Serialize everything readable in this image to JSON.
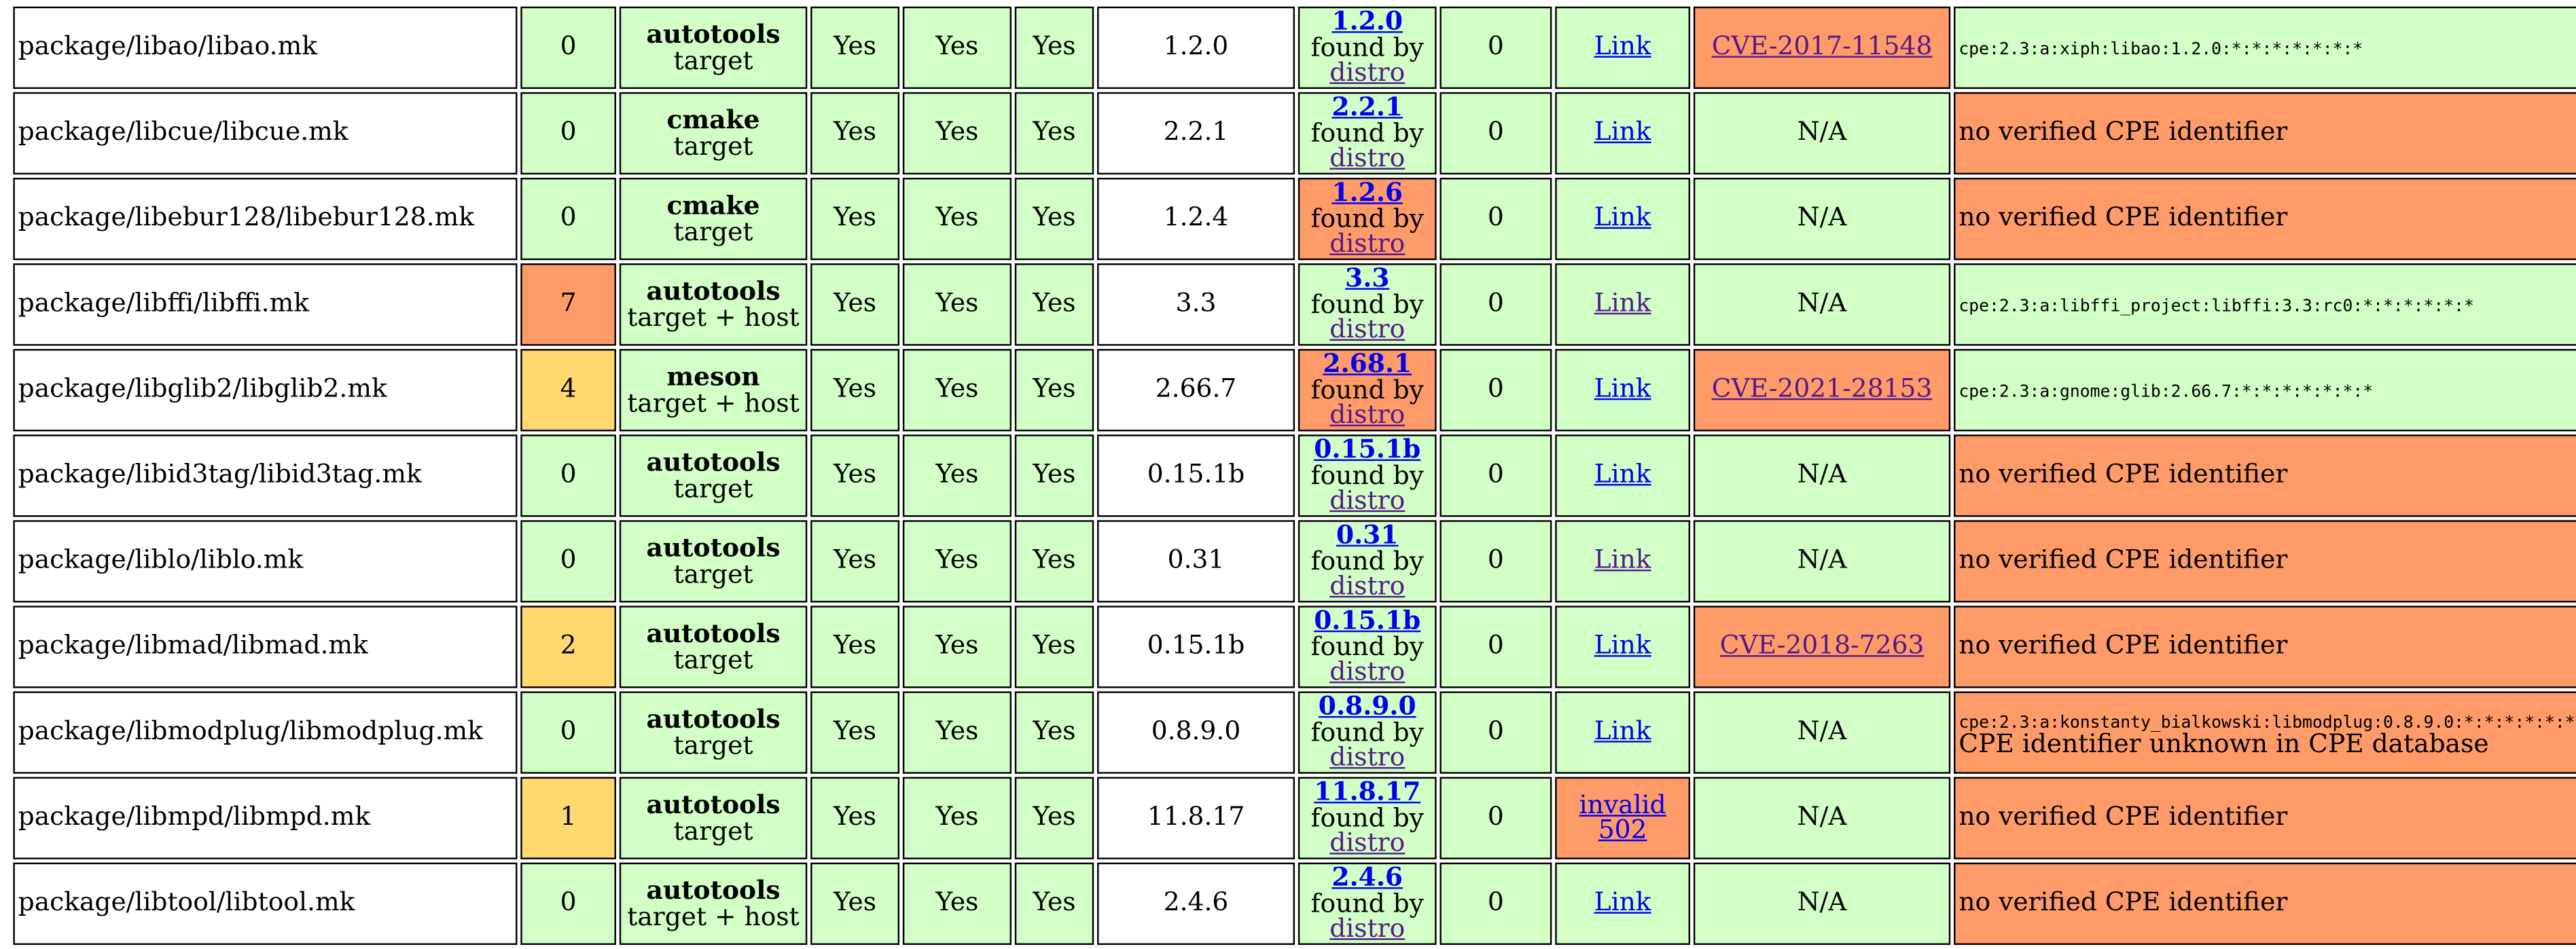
{
  "colors": {
    "ok_green": "#d1ffc5",
    "bad_orange": "#ff9a69",
    "warn_yellow": "#ffd870",
    "link_blue": "#0000ee",
    "link_visited": "#551a8b"
  },
  "found_by_label": "found by",
  "distro_label": "distro",
  "rows": [
    {
      "path": "package/libao/libao.mk",
      "patches": "0",
      "patches_status": "green",
      "infra": "autotools",
      "infra_target": "target",
      "license": "Yes",
      "license_files": "Yes",
      "hash_file": "Yes",
      "version": "1.2.0",
      "upstream_version": "1.2.0",
      "upstream_status": "green",
      "warnings": "0",
      "url": "Link",
      "url_status": "green",
      "url_visited": false,
      "cve": "CVE-2017-11548",
      "cve_status": "orange",
      "cve_is_link": true,
      "cpe_id": "cpe:2.3:a:xiph:libao:1.2.0:*:*:*:*:*:*:*",
      "cpe_note": "",
      "cpe_status": "green"
    },
    {
      "path": "package/libcue/libcue.mk",
      "patches": "0",
      "patches_status": "green",
      "infra": "cmake",
      "infra_target": "target",
      "license": "Yes",
      "license_files": "Yes",
      "hash_file": "Yes",
      "version": "2.2.1",
      "upstream_version": "2.2.1",
      "upstream_status": "green",
      "warnings": "0",
      "url": "Link",
      "url_status": "green",
      "url_visited": false,
      "cve": "N/A",
      "cve_status": "green",
      "cve_is_link": false,
      "cpe_id": "",
      "cpe_note": "no verified CPE identifier",
      "cpe_status": "orange"
    },
    {
      "path": "package/libebur128/libebur128.mk",
      "patches": "0",
      "patches_status": "green",
      "infra": "cmake",
      "infra_target": "target",
      "license": "Yes",
      "license_files": "Yes",
      "hash_file": "Yes",
      "version": "1.2.4",
      "upstream_version": "1.2.6",
      "upstream_status": "orange",
      "warnings": "0",
      "url": "Link",
      "url_status": "green",
      "url_visited": false,
      "cve": "N/A",
      "cve_status": "green",
      "cve_is_link": false,
      "cpe_id": "",
      "cpe_note": "no verified CPE identifier",
      "cpe_status": "orange"
    },
    {
      "path": "package/libffi/libffi.mk",
      "patches": "7",
      "patches_status": "orange",
      "infra": "autotools",
      "infra_target": "target + host",
      "license": "Yes",
      "license_files": "Yes",
      "hash_file": "Yes",
      "version": "3.3",
      "upstream_version": "3.3",
      "upstream_status": "green",
      "warnings": "0",
      "url": "Link",
      "url_status": "green",
      "url_visited": true,
      "cve": "N/A",
      "cve_status": "green",
      "cve_is_link": false,
      "cpe_id": "cpe:2.3:a:libffi_project:libffi:3.3:rc0:*:*:*:*:*:*",
      "cpe_note": "",
      "cpe_status": "green"
    },
    {
      "path": "package/libglib2/libglib2.mk",
      "patches": "4",
      "patches_status": "yellow",
      "infra": "meson",
      "infra_target": "target + host",
      "license": "Yes",
      "license_files": "Yes",
      "hash_file": "Yes",
      "version": "2.66.7",
      "upstream_version": "2.68.1",
      "upstream_status": "orange",
      "warnings": "0",
      "url": "Link",
      "url_status": "green",
      "url_visited": false,
      "cve": "CVE-2021-28153",
      "cve_status": "orange",
      "cve_is_link": true,
      "cpe_id": "cpe:2.3:a:gnome:glib:2.66.7:*:*:*:*:*:*:*",
      "cpe_note": "",
      "cpe_status": "green"
    },
    {
      "path": "package/libid3tag/libid3tag.mk",
      "patches": "0",
      "patches_status": "green",
      "infra": "autotools",
      "infra_target": "target",
      "license": "Yes",
      "license_files": "Yes",
      "hash_file": "Yes",
      "version": "0.15.1b",
      "upstream_version": "0.15.1b",
      "upstream_status": "green",
      "warnings": "0",
      "url": "Link",
      "url_status": "green",
      "url_visited": false,
      "cve": "N/A",
      "cve_status": "green",
      "cve_is_link": false,
      "cpe_id": "",
      "cpe_note": "no verified CPE identifier",
      "cpe_status": "orange"
    },
    {
      "path": "package/liblo/liblo.mk",
      "patches": "0",
      "patches_status": "green",
      "infra": "autotools",
      "infra_target": "target",
      "license": "Yes",
      "license_files": "Yes",
      "hash_file": "Yes",
      "version": "0.31",
      "upstream_version": "0.31",
      "upstream_status": "green",
      "warnings": "0",
      "url": "Link",
      "url_status": "green",
      "url_visited": true,
      "cve": "N/A",
      "cve_status": "green",
      "cve_is_link": false,
      "cpe_id": "",
      "cpe_note": "no verified CPE identifier",
      "cpe_status": "orange"
    },
    {
      "path": "package/libmad/libmad.mk",
      "patches": "2",
      "patches_status": "yellow",
      "infra": "autotools",
      "infra_target": "target",
      "license": "Yes",
      "license_files": "Yes",
      "hash_file": "Yes",
      "version": "0.15.1b",
      "upstream_version": "0.15.1b",
      "upstream_status": "green",
      "warnings": "0",
      "url": "Link",
      "url_status": "green",
      "url_visited": false,
      "cve": "CVE-2018-7263",
      "cve_status": "orange",
      "cve_is_link": true,
      "cpe_id": "",
      "cpe_note": "no verified CPE identifier",
      "cpe_status": "orange"
    },
    {
      "path": "package/libmodplug/libmodplug.mk",
      "patches": "0",
      "patches_status": "green",
      "infra": "autotools",
      "infra_target": "target",
      "license": "Yes",
      "license_files": "Yes",
      "hash_file": "Yes",
      "version": "0.8.9.0",
      "upstream_version": "0.8.9.0",
      "upstream_status": "green",
      "warnings": "0",
      "url": "Link",
      "url_status": "green",
      "url_visited": false,
      "cve": "N/A",
      "cve_status": "green",
      "cve_is_link": false,
      "cpe_id": "cpe:2.3:a:konstanty_bialkowski:libmodplug:0.8.9.0:*:*:*:*:*:*:*",
      "cpe_note": "CPE identifier unknown in CPE database",
      "cpe_status": "orange"
    },
    {
      "path": "package/libmpd/libmpd.mk",
      "patches": "1",
      "patches_status": "yellow",
      "infra": "autotools",
      "infra_target": "target",
      "license": "Yes",
      "license_files": "Yes",
      "hash_file": "Yes",
      "version": "11.8.17",
      "upstream_version": "11.8.17",
      "upstream_status": "green",
      "warnings": "0",
      "url": "invalid 502",
      "url_status": "orange",
      "url_visited": false,
      "cve": "N/A",
      "cve_status": "green",
      "cve_is_link": false,
      "cpe_id": "",
      "cpe_note": "no verified CPE identifier",
      "cpe_status": "orange"
    },
    {
      "path": "package/libtool/libtool.mk",
      "patches": "0",
      "patches_status": "green",
      "infra": "autotools",
      "infra_target": "target + host",
      "license": "Yes",
      "license_files": "Yes",
      "hash_file": "Yes",
      "version": "2.4.6",
      "upstream_version": "2.4.6",
      "upstream_status": "green",
      "warnings": "0",
      "url": "Link",
      "url_status": "green",
      "url_visited": false,
      "cve": "N/A",
      "cve_status": "green",
      "cve_is_link": false,
      "cpe_id": "",
      "cpe_note": "no verified CPE identifier",
      "cpe_status": "orange"
    }
  ]
}
